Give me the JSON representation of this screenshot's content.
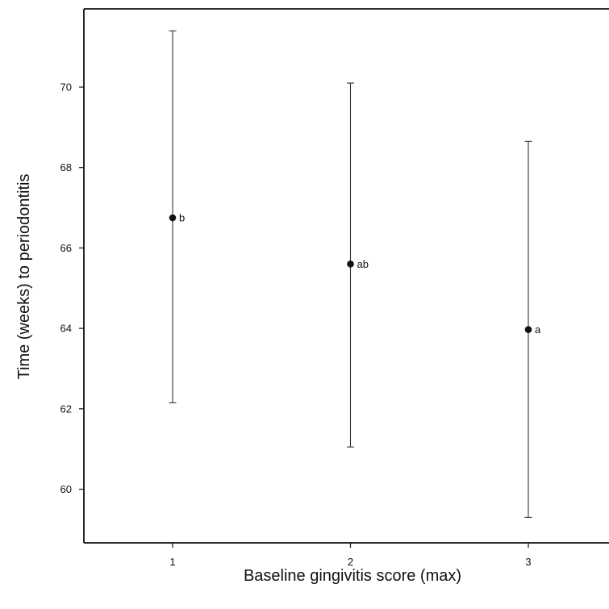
{
  "chart_data": {
    "type": "scatter",
    "xlabel": "Baseline gingivitis score (max)",
    "ylabel": "Time (weeks) to periodontitis",
    "x_ticks": [
      1,
      2,
      3
    ],
    "y_ticks": [
      60,
      62,
      64,
      66,
      68,
      70
    ],
    "xlim": [
      0.5,
      3.5
    ],
    "ylim": [
      58.7,
      72.0
    ],
    "grid": false,
    "series": [
      {
        "points": [
          {
            "x": 1,
            "y": 66.75,
            "lower": 62.15,
            "upper": 71.4,
            "label": "b"
          },
          {
            "x": 2,
            "y": 65.6,
            "lower": 61.05,
            "upper": 70.1,
            "label": "ab"
          },
          {
            "x": 3,
            "y": 63.97,
            "lower": 59.3,
            "upper": 68.65,
            "label": "a"
          }
        ]
      }
    ]
  }
}
